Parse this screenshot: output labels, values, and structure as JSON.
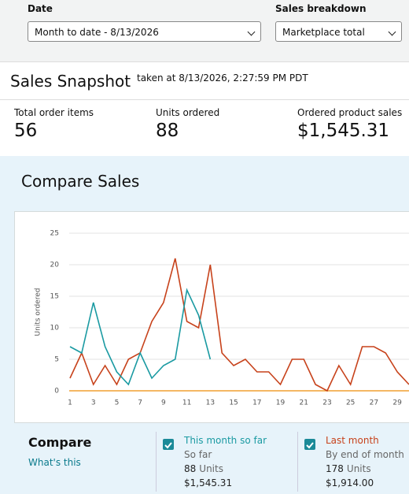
{
  "filters": [
    {
      "label": "Date",
      "value": "Month to date - 8/13/2026"
    },
    {
      "label": "Sales breakdown",
      "value": "Marketplace total"
    }
  ],
  "snapshot": {
    "title": "Sales Snapshot",
    "taken": "taken at 8/13/2026, 2:27:59 PM PDT"
  },
  "metrics": [
    {
      "label": "Total order items",
      "value": "56"
    },
    {
      "label": "Units ordered",
      "value": "88"
    },
    {
      "label": "Ordered product sales",
      "value": "$1,545.31"
    }
  ],
  "compare": {
    "title": "Compare Sales",
    "heading": "Compare",
    "link": "What's this"
  },
  "chart_data": {
    "type": "line",
    "y_label": "Units ordered",
    "x": [
      1,
      2,
      3,
      4,
      5,
      6,
      7,
      8,
      9,
      10,
      11,
      12,
      13,
      14,
      15,
      16,
      17,
      18,
      19,
      20,
      21,
      22,
      23,
      24,
      25,
      26,
      27,
      28,
      29,
      30
    ],
    "xlim": [
      1,
      30
    ],
    "xticks": [
      1,
      3,
      5,
      7,
      9,
      11,
      13,
      15,
      17,
      19,
      21,
      23,
      25,
      27,
      29
    ],
    "ylim": [
      0,
      25
    ],
    "yticks": [
      0,
      5,
      10,
      15,
      20,
      25
    ],
    "grid": true,
    "series": [
      {
        "name": "This month so far",
        "color": "#1a9aa2",
        "values": [
          7,
          6,
          14,
          7,
          3,
          1,
          6,
          2,
          4,
          5,
          16,
          12,
          5,
          null,
          null,
          null,
          null,
          null,
          null,
          null,
          null,
          null,
          null,
          null,
          null,
          null,
          null,
          null,
          null,
          null
        ]
      },
      {
        "name": "Last month",
        "color": "#c7421b",
        "values": [
          2,
          6,
          1,
          4,
          1,
          5,
          6,
          11,
          14,
          21,
          11,
          10,
          20,
          6,
          4,
          5,
          3,
          3,
          1,
          5,
          5,
          1,
          0,
          4,
          1,
          7,
          7,
          6,
          3,
          1
        ]
      }
    ]
  },
  "legend": [
    {
      "period": "So far",
      "units": "88",
      "units_label": "Units",
      "sales": "$1,545.31"
    },
    {
      "period": "By end of month",
      "units": "178",
      "units_label": "Units",
      "sales": "$1,914.00"
    }
  ]
}
